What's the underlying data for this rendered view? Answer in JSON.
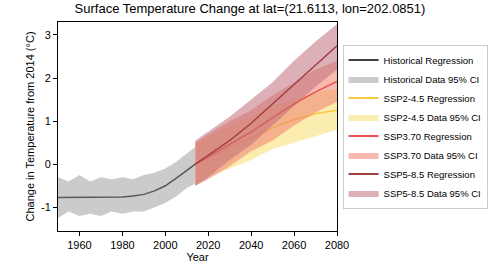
{
  "chart_data": {
    "type": "line",
    "title": "Surface Temperature Change at lat=(21.6113, lon=202.0851)",
    "x_label": "Year",
    "y_label": "Change in Temperature from 2014 (°C)",
    "xlim": [
      1950,
      2080
    ],
    "xticks": [
      1960,
      1980,
      2000,
      2020,
      2040,
      2060,
      2080
    ],
    "ylim": [
      -1.55,
      3.3
    ],
    "yticks": [
      -1,
      0,
      1,
      2,
      3
    ],
    "grid": false,
    "legend": "right",
    "series": [
      {
        "name": "Historical Regression",
        "color": "#000000",
        "ci_name": "Historical Data 95% CI",
        "ci_color": "#a0a0a0",
        "x": [
          1950,
          1955,
          1960,
          1965,
          1970,
          1975,
          1980,
          1985,
          1990,
          1995,
          2000,
          2005,
          2010,
          2014
        ],
        "values": [
          -0.77,
          -0.77,
          -0.77,
          -0.77,
          -0.77,
          -0.77,
          -0.76,
          -0.74,
          -0.7,
          -0.62,
          -0.5,
          -0.33,
          -0.14,
          0
        ],
        "ci_lower": [
          -1.25,
          -1.1,
          -1.2,
          -1.15,
          -1.2,
          -1.1,
          -1.15,
          -1.1,
          -1.1,
          -1.0,
          -0.9,
          -0.75,
          -0.55,
          -0.45
        ],
        "ci_upper": [
          -0.3,
          -0.4,
          -0.25,
          -0.4,
          -0.3,
          -0.35,
          -0.3,
          -0.35,
          -0.25,
          -0.2,
          -0.1,
          0.05,
          0.25,
          0.4
        ]
      },
      {
        "name": "SSP2-4.5 Regression",
        "color": "#f2b705",
        "ci_name": "SSP2-4.5 Data 95% CI",
        "ci_color": "#f7dc6f",
        "x": [
          2014,
          2020,
          2030,
          2040,
          2050,
          2060,
          2070,
          2080
        ],
        "values": [
          0,
          0.15,
          0.4,
          0.62,
          0.85,
          1.03,
          1.17,
          1.25
        ],
        "ci_lower": [
          -0.5,
          -0.3,
          -0.1,
          0.1,
          0.35,
          0.5,
          0.65,
          0.8
        ],
        "ci_upper": [
          0.5,
          0.65,
          0.9,
          1.1,
          1.35,
          1.5,
          1.65,
          1.75
        ]
      },
      {
        "name": "SSP3.70 Regression",
        "color": "#e3161b",
        "ci_name": "SSP3.70 Data 95% CI",
        "ci_color": "#f08070",
        "x": [
          2014,
          2020,
          2030,
          2040,
          2050,
          2060,
          2070,
          2080
        ],
        "values": [
          0,
          0.17,
          0.45,
          0.75,
          1.08,
          1.4,
          1.68,
          1.92
        ],
        "ci_lower": [
          -0.5,
          -0.35,
          -0.05,
          0.3,
          0.55,
          0.9,
          1.2,
          1.45
        ],
        "ci_upper": [
          0.5,
          0.7,
          1.0,
          1.25,
          1.6,
          1.9,
          2.2,
          2.4
        ]
      },
      {
        "name": "SSP5-8.5 Regression",
        "color": "#7f0000",
        "ci_name": "SSP5-8.5 Data 95% CI",
        "ci_color": "#c0707a",
        "x": [
          2014,
          2020,
          2030,
          2040,
          2050,
          2060,
          2070,
          2080
        ],
        "values": [
          0,
          0.2,
          0.55,
          0.95,
          1.4,
          1.85,
          2.3,
          2.75
        ],
        "ci_lower": [
          -0.5,
          -0.3,
          0.1,
          0.45,
          0.9,
          1.35,
          1.8,
          2.2
        ],
        "ci_upper": [
          0.55,
          0.75,
          1.1,
          1.5,
          1.9,
          2.4,
          2.85,
          3.25
        ]
      }
    ]
  }
}
